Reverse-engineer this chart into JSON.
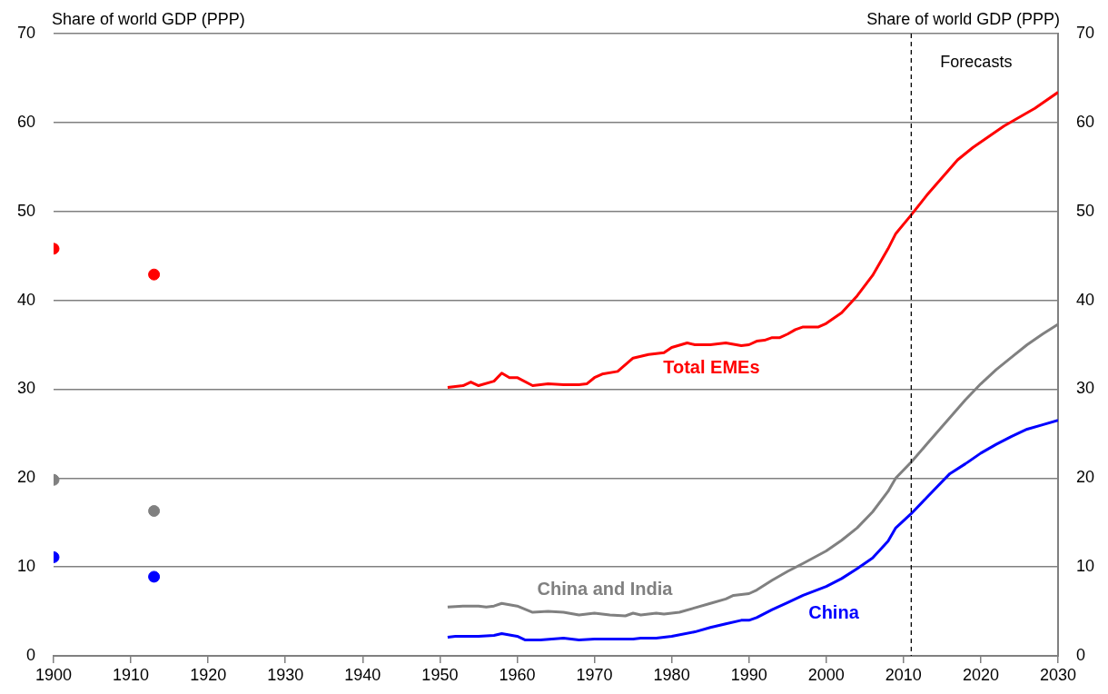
{
  "chart_data": {
    "type": "line",
    "ylabel": "Share of world GDP (PPP)",
    "y2label": "Share of world GDP (PPP)",
    "xlim": [
      1900,
      2030
    ],
    "xticks": [
      1900,
      1910,
      1920,
      1930,
      1940,
      1950,
      1960,
      1970,
      1980,
      1990,
      2000,
      2010,
      2020,
      2030
    ],
    "ylim": [
      0,
      70
    ],
    "yticks": [
      0,
      10,
      20,
      30,
      40,
      50,
      60,
      70
    ],
    "y2lim": [
      0,
      70
    ],
    "y2ticks": [
      0,
      10,
      20,
      30,
      40,
      50,
      60,
      70
    ],
    "grid": "y",
    "legend": false,
    "line_style": "solid",
    "ref_lines": [
      {
        "axis": "x",
        "value": 2011,
        "label": "Forecasts",
        "color": "#000000",
        "line_style": "dashed"
      }
    ],
    "series": [
      {
        "name": "Total EMEs",
        "color": "#ff0000",
        "x": [
          1951,
          1953,
          1954,
          1955,
          1957,
          1958,
          1959,
          1960,
          1962,
          1964,
          1966,
          1968,
          1969,
          1970,
          1971,
          1973,
          1975,
          1977,
          1979,
          1980,
          1982,
          1983,
          1985,
          1987,
          1989,
          1990,
          1991,
          1992,
          1993,
          1994,
          1995,
          1996,
          1997,
          1999,
          2000,
          2002,
          2004,
          2006,
          2008,
          2009,
          2011,
          2013,
          2015,
          2017,
          2019,
          2021,
          2023,
          2025,
          2027,
          2030
        ],
        "values": [
          30.2,
          30.4,
          30.8,
          30.4,
          30.9,
          31.8,
          31.3,
          31.3,
          30.4,
          30.6,
          30.5,
          30.5,
          30.6,
          31.3,
          31.7,
          32.0,
          33.5,
          33.9,
          34.1,
          34.7,
          35.2,
          35.0,
          35.0,
          35.2,
          34.9,
          35.0,
          35.4,
          35.5,
          35.8,
          35.8,
          36.2,
          36.7,
          37.0,
          37.0,
          37.4,
          38.6,
          40.5,
          42.8,
          45.8,
          47.5,
          49.6,
          51.8,
          53.8,
          55.8,
          57.2,
          58.4,
          59.6,
          60.6,
          61.6,
          63.4
        ]
      },
      {
        "name": "China and India",
        "color": "#808080",
        "x": [
          1951,
          1953,
          1955,
          1956,
          1957,
          1958,
          1960,
          1962,
          1964,
          1966,
          1968,
          1970,
          1972,
          1974,
          1975,
          1976,
          1978,
          1979,
          1981,
          1983,
          1985,
          1987,
          1988,
          1990,
          1991,
          1993,
          1995,
          1997,
          2000,
          2002,
          2004,
          2006,
          2008,
          2009,
          2011,
          2013,
          2016,
          2018,
          2020,
          2022,
          2024,
          2026,
          2028,
          2030
        ],
        "values": [
          5.5,
          5.6,
          5.6,
          5.5,
          5.6,
          5.9,
          5.6,
          4.9,
          5.0,
          4.9,
          4.6,
          4.8,
          4.6,
          4.5,
          4.8,
          4.6,
          4.8,
          4.7,
          4.9,
          5.4,
          5.9,
          6.4,
          6.8,
          7.0,
          7.4,
          8.5,
          9.5,
          10.4,
          11.8,
          13.0,
          14.4,
          16.2,
          18.5,
          20.0,
          21.8,
          23.8,
          26.8,
          28.8,
          30.6,
          32.2,
          33.6,
          35.0,
          36.2,
          37.3
        ]
      },
      {
        "name": "China",
        "color": "#0000ff",
        "x": [
          1951,
          1952,
          1955,
          1957,
          1958,
          1960,
          1961,
          1963,
          1966,
          1968,
          1970,
          1972,
          1975,
          1976,
          1978,
          1980,
          1983,
          1985,
          1987,
          1989,
          1990,
          1991,
          1993,
          1995,
          1997,
          2000,
          2002,
          2004,
          2006,
          2008,
          2009,
          2011,
          2013,
          2016,
          2018,
          2020,
          2022,
          2024,
          2026,
          2028,
          2030
        ],
        "values": [
          2.1,
          2.2,
          2.2,
          2.3,
          2.5,
          2.2,
          1.8,
          1.8,
          2.0,
          1.8,
          1.9,
          1.9,
          1.9,
          2.0,
          2.0,
          2.2,
          2.7,
          3.2,
          3.6,
          4.0,
          4.0,
          4.3,
          5.2,
          6.0,
          6.8,
          7.8,
          8.7,
          9.8,
          11.0,
          12.9,
          14.4,
          16.0,
          17.8,
          20.5,
          21.6,
          22.8,
          23.8,
          24.7,
          25.5,
          26.0,
          26.5
        ]
      },
      {
        "type": "scatter",
        "marker": "circle",
        "color": "#ff0000",
        "x": [
          1900,
          1913
        ],
        "values": [
          45.8,
          42.9
        ]
      },
      {
        "type": "scatter",
        "marker": "circle",
        "color": "#808080",
        "x": [
          1900,
          1913
        ],
        "values": [
          19.8,
          16.3
        ]
      },
      {
        "type": "scatter",
        "marker": "circle",
        "color": "#0000ff",
        "x": [
          1900,
          1913
        ],
        "values": [
          11.1,
          8.9
        ]
      }
    ]
  }
}
